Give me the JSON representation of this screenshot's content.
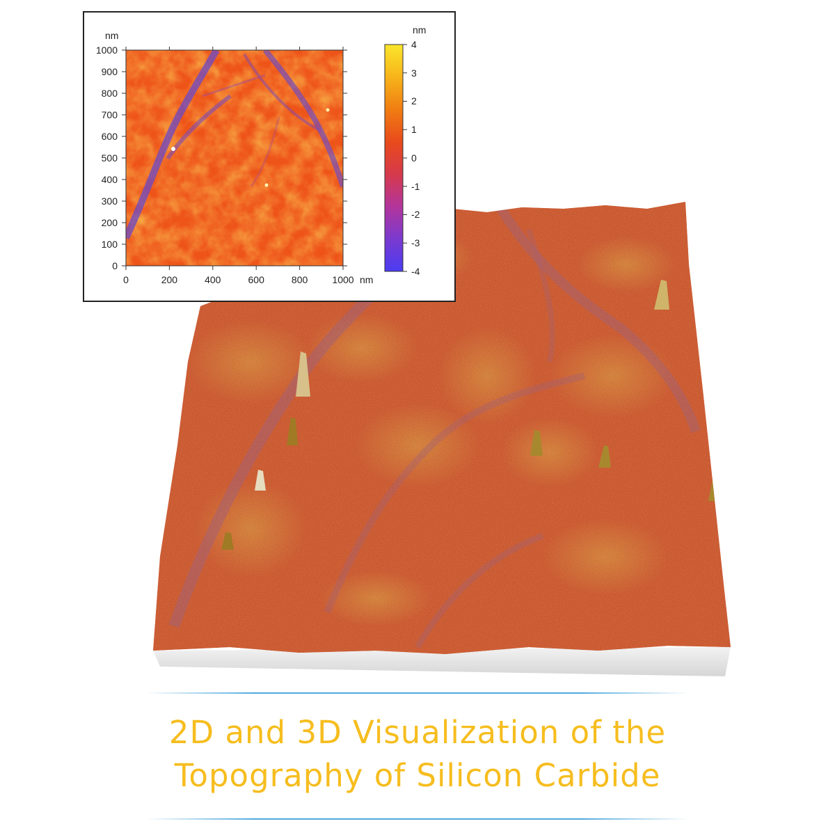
{
  "caption": {
    "line1": "2D and 3D Visualization of the",
    "line2": "Topography of Silicon Carbide"
  },
  "colors": {
    "caption": "#f6bd1e",
    "divider": "#4fa9dd",
    "colormap": [
      "#4a3cf2",
      "#7a3ad0",
      "#b4359a",
      "#d63a4a",
      "#e84a1c",
      "#f07c12",
      "#f7b51a",
      "#fbe62c"
    ]
  },
  "inset": {
    "x_axis": {
      "ticks": [
        "0",
        "200",
        "400",
        "600",
        "800",
        "1000"
      ],
      "unit": "nm",
      "range": [
        0,
        1000
      ]
    },
    "y_axis": {
      "ticks": [
        "0",
        "100",
        "200",
        "300",
        "400",
        "500",
        "600",
        "700",
        "800",
        "900",
        "1000"
      ],
      "unit": "nm",
      "range": [
        0,
        1000
      ]
    },
    "colorbar": {
      "ticks": [
        "4",
        "3",
        "2",
        "1",
        "0",
        "-1",
        "-2",
        "-3",
        "-4"
      ],
      "unit": "nm",
      "range": [
        -4,
        4
      ]
    }
  }
}
